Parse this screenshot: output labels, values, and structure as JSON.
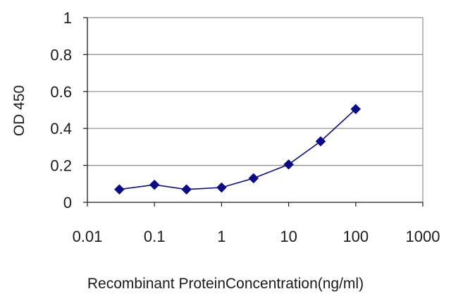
{
  "chart_data": {
    "type": "line",
    "title": "",
    "xlabel": "Recombinant ProteinConcentration(ng/ml)",
    "ylabel": "OD 450",
    "x_scale": "log",
    "xlim": [
      0.01,
      1000
    ],
    "ylim": [
      0,
      1
    ],
    "x_ticks": [
      "0.01",
      "0.1",
      "1",
      "10",
      "100",
      "1000"
    ],
    "y_ticks": [
      "0",
      "0.2",
      "0.4",
      "0.6",
      "0.8",
      "1"
    ],
    "grid": "horizontal",
    "legend": "none",
    "marker": "diamond",
    "color": "#0a0a8c",
    "series": [
      {
        "x": [
          0.03,
          0.1,
          0.3,
          1,
          3,
          10,
          30,
          100
        ],
        "y": [
          0.07,
          0.095,
          0.07,
          0.08,
          0.13,
          0.205,
          0.33,
          0.505
        ]
      }
    ]
  }
}
